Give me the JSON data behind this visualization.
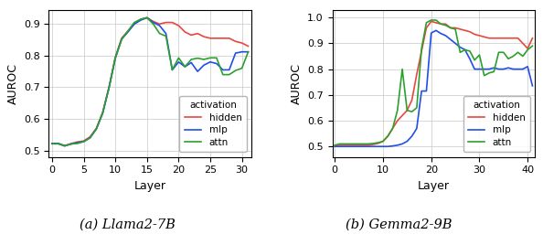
{
  "llama_hidden": [
    0.522,
    0.522,
    0.515,
    0.522,
    0.527,
    0.53,
    0.543,
    0.57,
    0.62,
    0.7,
    0.795,
    0.855,
    0.878,
    0.9,
    0.915,
    0.92,
    0.908,
    0.9,
    0.905,
    0.905,
    0.895,
    0.875,
    0.865,
    0.87,
    0.86,
    0.855,
    0.855,
    0.855,
    0.855,
    0.845,
    0.84,
    0.83
  ],
  "llama_mlp": [
    0.522,
    0.522,
    0.515,
    0.52,
    0.525,
    0.528,
    0.54,
    0.568,
    0.618,
    0.698,
    0.792,
    0.852,
    0.875,
    0.9,
    0.912,
    0.92,
    0.905,
    0.895,
    0.87,
    0.755,
    0.78,
    0.765,
    0.778,
    0.75,
    0.77,
    0.78,
    0.775,
    0.755,
    0.755,
    0.808,
    0.812,
    0.812
  ],
  "llama_attn": [
    0.521,
    0.521,
    0.514,
    0.521,
    0.522,
    0.528,
    0.54,
    0.568,
    0.618,
    0.698,
    0.792,
    0.852,
    0.878,
    0.905,
    0.915,
    0.92,
    0.9,
    0.87,
    0.862,
    0.755,
    0.793,
    0.765,
    0.788,
    0.792,
    0.788,
    0.793,
    0.793,
    0.74,
    0.74,
    0.753,
    0.76,
    0.812
  ],
  "llama_x": [
    0,
    1,
    2,
    3,
    4,
    5,
    6,
    7,
    8,
    9,
    10,
    11,
    12,
    13,
    14,
    15,
    16,
    17,
    18,
    19,
    20,
    21,
    22,
    23,
    24,
    25,
    26,
    27,
    28,
    29,
    30,
    31
  ],
  "llama_xlim": [
    -0.5,
    31.5
  ],
  "llama_ylim": [
    0.48,
    0.945
  ],
  "llama_yticks": [
    0.5,
    0.6,
    0.7,
    0.8,
    0.9
  ],
  "llama_xticks": [
    0,
    5,
    10,
    15,
    20,
    25,
    30
  ],
  "llama_title": "(a) Llama2-7B",
  "gemma_hidden": [
    0.502,
    0.505,
    0.505,
    0.505,
    0.505,
    0.505,
    0.505,
    0.505,
    0.508,
    0.512,
    0.52,
    0.54,
    0.57,
    0.6,
    0.62,
    0.64,
    0.68,
    0.78,
    0.87,
    0.96,
    0.985,
    0.98,
    0.975,
    0.975,
    0.96,
    0.96,
    0.955,
    0.95,
    0.945,
    0.935,
    0.93,
    0.925,
    0.92,
    0.92,
    0.92,
    0.92,
    0.92,
    0.92,
    0.92,
    0.9,
    0.88,
    0.92
  ],
  "gemma_mlp": [
    0.5,
    0.5,
    0.5,
    0.5,
    0.5,
    0.5,
    0.5,
    0.5,
    0.5,
    0.5,
    0.5,
    0.5,
    0.502,
    0.505,
    0.51,
    0.52,
    0.54,
    0.57,
    0.715,
    0.715,
    0.94,
    0.95,
    0.938,
    0.93,
    0.915,
    0.9,
    0.885,
    0.875,
    0.84,
    0.8,
    0.8,
    0.8,
    0.8,
    0.805,
    0.8,
    0.8,
    0.805,
    0.8,
    0.8,
    0.8,
    0.81,
    0.735
  ],
  "gemma_attn": [
    0.505,
    0.51,
    0.51,
    0.51,
    0.51,
    0.51,
    0.51,
    0.51,
    0.512,
    0.515,
    0.52,
    0.54,
    0.57,
    0.64,
    0.8,
    0.64,
    0.635,
    0.65,
    0.88,
    0.98,
    0.99,
    0.99,
    0.975,
    0.97,
    0.96,
    0.955,
    0.865,
    0.875,
    0.87,
    0.835,
    0.855,
    0.775,
    0.785,
    0.79,
    0.865,
    0.865,
    0.84,
    0.85,
    0.865,
    0.85,
    0.875,
    0.89
  ],
  "gemma_x": [
    0,
    1,
    2,
    3,
    4,
    5,
    6,
    7,
    8,
    9,
    10,
    11,
    12,
    13,
    14,
    15,
    16,
    17,
    18,
    19,
    20,
    21,
    22,
    23,
    24,
    25,
    26,
    27,
    28,
    29,
    30,
    31,
    32,
    33,
    34,
    35,
    36,
    37,
    38,
    39,
    40,
    41
  ],
  "gemma_xlim": [
    -0.5,
    41.5
  ],
  "gemma_ylim": [
    0.46,
    1.03
  ],
  "gemma_yticks": [
    0.5,
    0.6,
    0.7,
    0.8,
    0.9,
    1.0
  ],
  "gemma_xticks": [
    0,
    10,
    20,
    30,
    40
  ],
  "gemma_title": "(b) Gemma2-9B",
  "color_hidden": "#E8473F",
  "color_mlp": "#1F4FE8",
  "color_attn": "#2CA02C",
  "legend_title": "activation",
  "legend_labels": [
    "hidden",
    "mlp",
    "attn"
  ],
  "ylabel": "AUROC",
  "xlabel": "Layer",
  "linewidth": 1.2,
  "grid_color": "#c8c8c8",
  "background_color": "white"
}
